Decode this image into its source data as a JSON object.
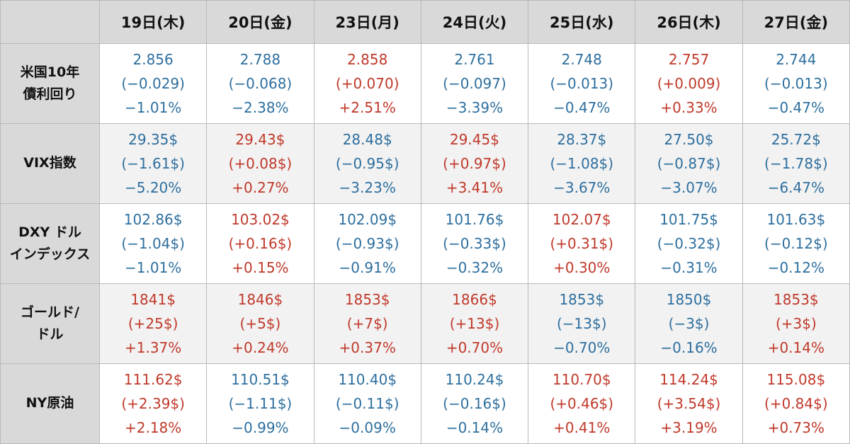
{
  "headers": [
    "19日(木)",
    "20日(金)",
    "23日(月)",
    "24日(火)",
    "25日(水)",
    "26日(木)",
    "27日(金)"
  ],
  "rows": [
    {
      "label": [
        "米国10年",
        "債利回り"
      ],
      "shade": false,
      "cells": [
        {
          "dir": "down",
          "value": "2.856",
          "change": "(−0.029)",
          "pct": "−1.01%"
        },
        {
          "dir": "down",
          "value": "2.788",
          "change": "(−0.068)",
          "pct": "−2.38%"
        },
        {
          "dir": "up",
          "value": "2.858",
          "change": "(+0.070)",
          "pct": "+2.51%"
        },
        {
          "dir": "down",
          "value": "2.761",
          "change": "(−0.097)",
          "pct": "−3.39%"
        },
        {
          "dir": "down",
          "value": "2.748",
          "change": "(−0.013)",
          "pct": "−0.47%"
        },
        {
          "dir": "up",
          "value": "2.757",
          "change": "(+0.009)",
          "pct": "+0.33%"
        },
        {
          "dir": "down",
          "value": "2.744",
          "change": "(−0.013)",
          "pct": "−0.47%"
        }
      ]
    },
    {
      "label": [
        "VIX指数"
      ],
      "shade": true,
      "cells": [
        {
          "dir": "down",
          "value": "29.35$",
          "change": "(−1.61$)",
          "pct": "−5.20%"
        },
        {
          "dir": "up",
          "value": "29.43$",
          "change": "(+0.08$)",
          "pct": "+0.27%"
        },
        {
          "dir": "down",
          "value": "28.48$",
          "change": "(−0.95$)",
          "pct": "−3.23%"
        },
        {
          "dir": "up",
          "value": "29.45$",
          "change": "(+0.97$)",
          "pct": "+3.41%"
        },
        {
          "dir": "down",
          "value": "28.37$",
          "change": "(−1.08$)",
          "pct": "−3.67%"
        },
        {
          "dir": "down",
          "value": "27.50$",
          "change": "(−0.87$)",
          "pct": "−3.07%"
        },
        {
          "dir": "down",
          "value": "25.72$",
          "change": "(−1.78$)",
          "pct": "−6.47%"
        }
      ]
    },
    {
      "label": [
        "DXY ドル",
        "インデックス"
      ],
      "shade": false,
      "cells": [
        {
          "dir": "down",
          "value": "102.86$",
          "change": "(−1.04$)",
          "pct": "−1.01%"
        },
        {
          "dir": "up",
          "value": "103.02$",
          "change": "(+0.16$)",
          "pct": "+0.15%"
        },
        {
          "dir": "down",
          "value": "102.09$",
          "change": "(−0.93$)",
          "pct": "−0.91%"
        },
        {
          "dir": "down",
          "value": "101.76$",
          "change": "(−0.33$)",
          "pct": "−0.32%"
        },
        {
          "dir": "up",
          "value": "102.07$",
          "change": "(+0.31$)",
          "pct": "+0.30%"
        },
        {
          "dir": "down",
          "value": "101.75$",
          "change": "(−0.32$)",
          "pct": "−0.31%"
        },
        {
          "dir": "down",
          "value": "101.63$",
          "change": "(−0.12$)",
          "pct": "−0.12%"
        }
      ]
    },
    {
      "label": [
        "ゴールド/",
        "ドル"
      ],
      "shade": true,
      "cells": [
        {
          "dir": "up",
          "value": "1841$",
          "change": "(+25$)",
          "pct": "+1.37%"
        },
        {
          "dir": "up",
          "value": "1846$",
          "change": "(+5$)",
          "pct": "+0.24%"
        },
        {
          "dir": "up",
          "value": "1853$",
          "change": "(+7$)",
          "pct": "+0.37%"
        },
        {
          "dir": "up",
          "value": "1866$",
          "change": "(+13$)",
          "pct": "+0.70%"
        },
        {
          "dir": "down",
          "value": "1853$",
          "change": "(−13$)",
          "pct": "−0.70%"
        },
        {
          "dir": "down",
          "value": "1850$",
          "change": "(−3$)",
          "pct": "−0.16%"
        },
        {
          "dir": "up",
          "value": "1853$",
          "change": "(+3$)",
          "pct": "+0.14%"
        }
      ]
    },
    {
      "label": [
        "NY原油"
      ],
      "shade": false,
      "cells": [
        {
          "dir": "up",
          "value": "111.62$",
          "change": "(+2.39$)",
          "pct": "+2.18%"
        },
        {
          "dir": "down",
          "value": "110.51$",
          "change": "(−1.11$)",
          "pct": "−0.99%"
        },
        {
          "dir": "down",
          "value": "110.40$",
          "change": "(−0.11$)",
          "pct": "−0.09%"
        },
        {
          "dir": "down",
          "value": "110.24$",
          "change": "(−0.16$)",
          "pct": "−0.14%"
        },
        {
          "dir": "up",
          "value": "110.70$",
          "change": "(+0.46$)",
          "pct": "+0.41%"
        },
        {
          "dir": "up",
          "value": "114.24$",
          "change": "(+3.54$)",
          "pct": "+3.19%"
        },
        {
          "dir": "up",
          "value": "115.08$",
          "change": "(+0.84$)",
          "pct": "+0.73%"
        }
      ]
    }
  ],
  "colors": {
    "up": "#c0392b",
    "down": "#2e6f9e",
    "header_bg": "#d9d9d9",
    "shade_bg": "#f2f2f2"
  }
}
